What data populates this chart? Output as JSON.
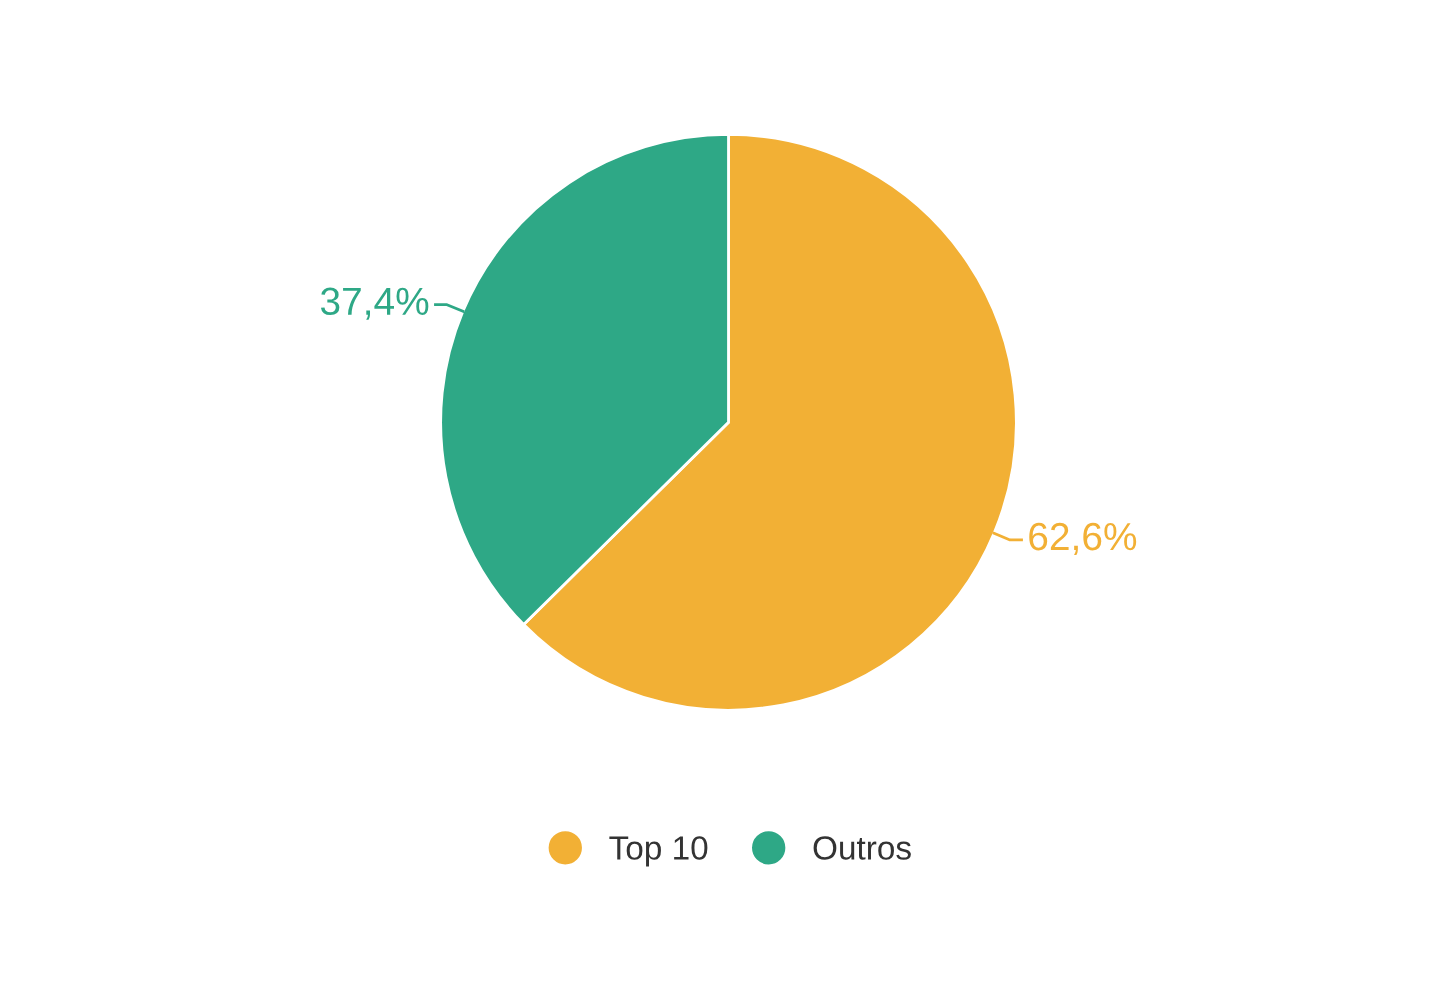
{
  "chart_data": {
    "type": "pie",
    "categories": [
      "Top 10",
      "Outros"
    ],
    "values": [
      62.6,
      37.4
    ],
    "colors": [
      "#f2b035",
      "#2ea886"
    ],
    "value_labels": [
      "62,6%",
      "37,4%"
    ],
    "legend": "bottom"
  }
}
